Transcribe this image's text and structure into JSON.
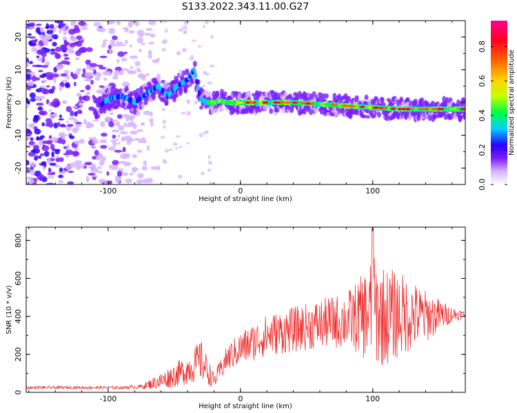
{
  "title": "S133.2022.343.11.00.G27",
  "chart_data": [
    {
      "type": "heatmap",
      "xlabel": "Height of straight line (km)",
      "ylabel": "Frequency (Hz)",
      "xlim": [
        -162,
        170
      ],
      "ylim": [
        -25,
        25
      ],
      "xticks": [
        -100,
        0,
        100
      ],
      "yticks": [
        -20,
        -10,
        0,
        10,
        20
      ],
      "colorbar": {
        "label": "Normalized spectral amplitude",
        "range": [
          0.0,
          0.95
        ],
        "ticks": [
          0.0,
          0.2,
          0.4,
          0.6,
          0.8
        ],
        "colors": [
          "#ffffff",
          "#d6b4ff",
          "#7a1fff",
          "#2a00ff",
          "#00d0ff",
          "#00ff40",
          "#c8ff00",
          "#ffd000",
          "#ff6000",
          "#ff0020",
          "#ff0090"
        ]
      },
      "ridge": {
        "x": [
          -110,
          -100,
          -90,
          -80,
          -70,
          -62,
          -55,
          -48,
          -40,
          -35,
          -30,
          -25,
          -20,
          -15,
          -10,
          0,
          20,
          40,
          60,
          80,
          100,
          120,
          140,
          170
        ],
        "y": [
          -2,
          1,
          2,
          0,
          3,
          5,
          2,
          5,
          7,
          10,
          1,
          0,
          0,
          0.5,
          0,
          0,
          0,
          0,
          -0.5,
          -1,
          -1.5,
          -2,
          -2,
          -2
        ]
      }
    },
    {
      "type": "line",
      "xlabel": "Height of straight line (km)",
      "ylabel": "SNR (10 * v/v)",
      "xlim": [
        -162,
        170
      ],
      "ylim": [
        0,
        870
      ],
      "xticks": [
        -100,
        0,
        100
      ],
      "yticks": [
        0,
        200,
        400,
        600,
        800
      ],
      "color": "#ee3030",
      "envelope": {
        "x": [
          -162,
          -90,
          -75,
          -60,
          -40,
          -30,
          -20,
          -10,
          0,
          20,
          40,
          60,
          80,
          90,
          100,
          110,
          120,
          140,
          160,
          170
        ],
        "mean": [
          25,
          25,
          30,
          60,
          120,
          170,
          60,
          180,
          230,
          300,
          330,
          360,
          380,
          400,
          420,
          400,
          410,
          400,
          410,
          410
        ],
        "amp": [
          8,
          8,
          12,
          45,
          80,
          110,
          40,
          70,
          90,
          110,
          120,
          130,
          150,
          200,
          300,
          260,
          230,
          140,
          40,
          20
        ]
      }
    }
  ]
}
